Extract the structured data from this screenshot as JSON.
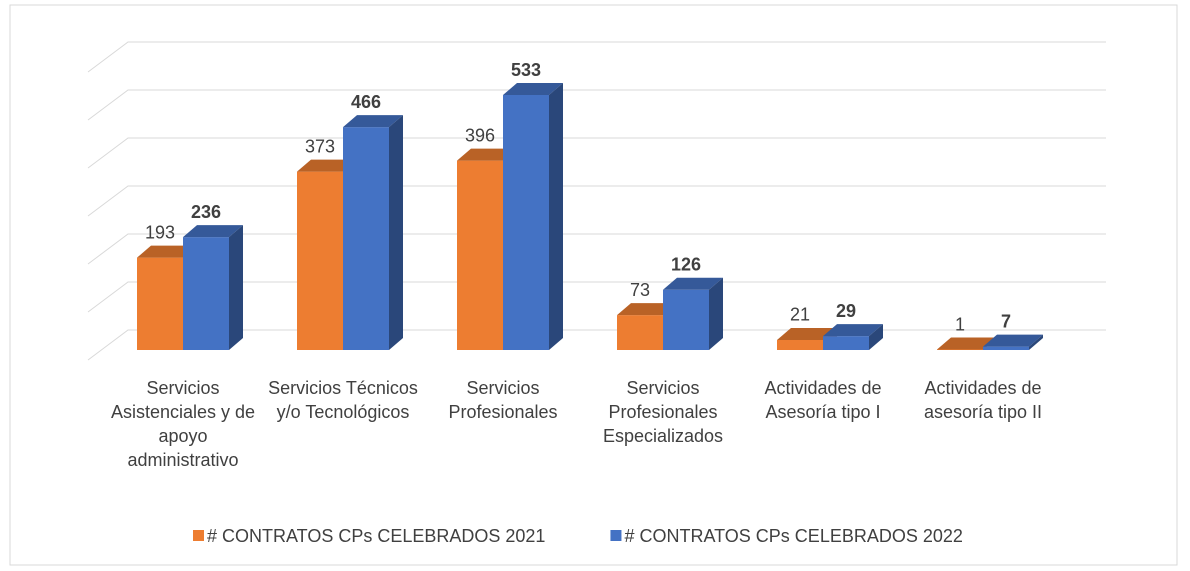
{
  "chart_data": {
    "type": "bar3d",
    "categories": [
      "Servicios Asistenciales y de apoyo administrativo",
      "Servicios Técnicos y/o Tecnológicos",
      "Servicios Profesionales",
      "Servicios Profesionales Especializados",
      "Actividades de Asesoría tipo I",
      "Actividades de asesoría tipo II"
    ],
    "series": [
      {
        "name": "# CONTRATOS CPs CELEBRADOS 2021",
        "color": "#ED7D31",
        "values": [
          193,
          373,
          396,
          73,
          21,
          1
        ]
      },
      {
        "name": "# CONTRATOS CPs CELEBRADOS 2022",
        "color": "#4472C4",
        "values": [
          236,
          466,
          533,
          126,
          29,
          7
        ]
      }
    ],
    "ylim": [
      0,
      600
    ],
    "yticks": [
      0,
      100,
      200,
      300,
      400,
      500,
      600
    ],
    "grid": true,
    "legend": "bottom"
  }
}
